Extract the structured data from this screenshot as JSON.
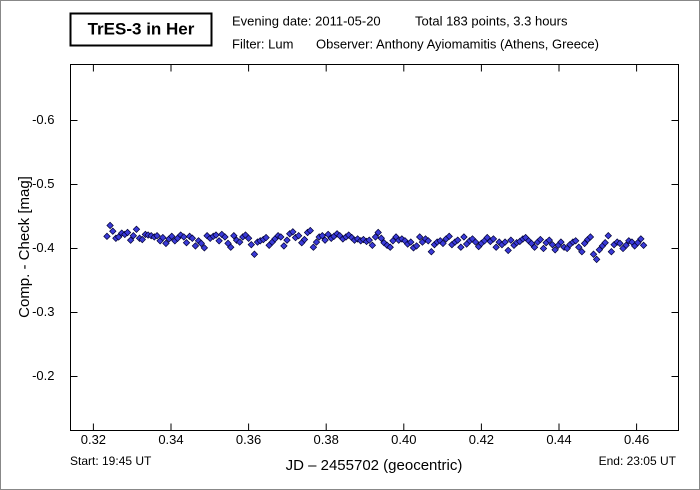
{
  "chart_data": {
    "type": "scatter",
    "title": "TrES-3 in Her",
    "subtitle_lines": [
      "Evening date: 2011-05-20",
      "Total 183 points, 3.3 hours",
      "Filter: Lum",
      "Observer: Anthony Ayiomamitis (Athens, Greece)"
    ],
    "x_label": "JD – 2455702  (geocentric)",
    "y_label": "Comp. - Check [mag]",
    "start_label": "Start: 19:45 UT",
    "end_label": "End: 23:05 UT",
    "xlim": [
      0.3141,
      0.4708
    ],
    "ylim": [
      -0.1156,
      -0.6875
    ],
    "xticks": [
      0.32,
      0.34,
      0.36,
      0.38,
      {
        "value": 0.4,
        "label": "0.40"
      },
      0.42,
      0.44,
      0.46
    ],
    "yticks": [
      -0.6,
      -0.5,
      -0.4,
      -0.3,
      -0.2
    ],
    "series": [
      {
        "color": "#3a3ad8",
        "x": [
          0.3235,
          0.3243,
          0.325,
          0.3258,
          0.3265,
          0.3273,
          0.3281,
          0.3288,
          0.3296,
          0.3303,
          0.3311,
          0.3319,
          0.3326,
          0.3334,
          0.3341,
          0.3349,
          0.3357,
          0.3364,
          0.3372,
          0.3379,
          0.3387,
          0.3395,
          0.3402,
          0.341,
          0.3417,
          0.3425,
          0.3433,
          0.344,
          0.3448,
          0.3455,
          0.3463,
          0.3471,
          0.3478,
          0.3486,
          0.3493,
          0.3501,
          0.3509,
          0.3516,
          0.3524,
          0.3531,
          0.3539,
          0.3547,
          0.3554,
          0.3562,
          0.3569,
          0.3577,
          0.3585,
          0.3592,
          0.36,
          0.3607,
          0.3615,
          0.3623,
          0.363,
          0.3638,
          0.3645,
          0.3653,
          0.3661,
          0.3668,
          0.3676,
          0.3683,
          0.3691,
          0.3699,
          0.3706,
          0.3714,
          0.3721,
          0.3729,
          0.3737,
          0.3744,
          0.3752,
          0.3759,
          0.3767,
          0.3775,
          0.3782,
          0.379,
          0.3797,
          0.3805,
          0.3813,
          0.382,
          0.3828,
          0.3835,
          0.3843,
          0.3851,
          0.3858,
          0.3866,
          0.3873,
          0.3881,
          0.3889,
          0.3896,
          0.3904,
          0.3911,
          0.3919,
          0.3927,
          0.3934,
          0.3942,
          0.3949,
          0.3957,
          0.3965,
          0.3972,
          0.398,
          0.3987,
          0.3995,
          0.4003,
          0.401,
          0.4018,
          0.4025,
          0.4033,
          0.4041,
          0.4048,
          0.4056,
          0.4063,
          0.4071,
          0.4079,
          0.4086,
          0.4094,
          0.4101,
          0.4109,
          0.4117,
          0.4124,
          0.4132,
          0.4139,
          0.4147,
          0.4155,
          0.4162,
          0.417,
          0.4177,
          0.4185,
          0.4193,
          0.42,
          0.4208,
          0.4215,
          0.4223,
          0.4231,
          0.4238,
          0.4246,
          0.4253,
          0.4261,
          0.4269,
          0.4276,
          0.4284,
          0.4291,
          0.4299,
          0.4307,
          0.4314,
          0.4322,
          0.4329,
          0.4337,
          0.4345,
          0.4352,
          0.436,
          0.4367,
          0.4375,
          0.4383,
          0.439,
          0.4398,
          0.4405,
          0.4413,
          0.4421,
          0.4428,
          0.4436,
          0.4443,
          0.4451,
          0.4459,
          0.4466,
          0.4474,
          0.4481,
          0.4489,
          0.4497,
          0.4504,
          0.4512,
          0.4519,
          0.4527,
          0.4535,
          0.4542,
          0.455,
          0.4557,
          0.4565,
          0.4573,
          0.458,
          0.4588,
          0.4595,
          0.4603,
          0.4611,
          0.4618
        ],
        "values": [
          -0.419,
          -0.436,
          -0.427,
          -0.416,
          -0.418,
          -0.424,
          -0.422,
          -0.425,
          -0.413,
          -0.42,
          -0.43,
          -0.416,
          -0.414,
          -0.422,
          -0.421,
          -0.42,
          -0.418,
          -0.42,
          -0.412,
          -0.417,
          -0.408,
          -0.415,
          -0.419,
          -0.412,
          -0.416,
          -0.421,
          -0.418,
          -0.409,
          -0.419,
          -0.416,
          -0.404,
          -0.412,
          -0.408,
          -0.401,
          -0.42,
          -0.416,
          -0.419,
          -0.421,
          -0.412,
          -0.422,
          -0.418,
          -0.408,
          -0.402,
          -0.42,
          -0.413,
          -0.41,
          -0.418,
          -0.421,
          -0.416,
          -0.406,
          -0.391,
          -0.41,
          -0.412,
          -0.414,
          -0.417,
          -0.405,
          -0.41,
          -0.415,
          -0.42,
          -0.418,
          -0.404,
          -0.413,
          -0.423,
          -0.426,
          -0.417,
          -0.42,
          -0.409,
          -0.414,
          -0.425,
          -0.428,
          -0.402,
          -0.41,
          -0.418,
          -0.42,
          -0.413,
          -0.422,
          -0.416,
          -0.419,
          -0.423,
          -0.42,
          -0.415,
          -0.418,
          -0.421,
          -0.417,
          -0.413,
          -0.415,
          -0.412,
          -0.414,
          -0.411,
          -0.413,
          -0.405,
          -0.418,
          -0.425,
          -0.416,
          -0.409,
          -0.405,
          -0.402,
          -0.412,
          -0.418,
          -0.413,
          -0.415,
          -0.412,
          -0.407,
          -0.41,
          -0.401,
          -0.404,
          -0.418,
          -0.41,
          -0.415,
          -0.412,
          -0.395,
          -0.406,
          -0.41,
          -0.412,
          -0.408,
          -0.415,
          -0.419,
          -0.406,
          -0.41,
          -0.413,
          -0.402,
          -0.418,
          -0.407,
          -0.412,
          -0.415,
          -0.41,
          -0.403,
          -0.408,
          -0.412,
          -0.417,
          -0.411,
          -0.415,
          -0.402,
          -0.41,
          -0.406,
          -0.41,
          -0.397,
          -0.413,
          -0.405,
          -0.409,
          -0.411,
          -0.415,
          -0.417,
          -0.412,
          -0.408,
          -0.402,
          -0.41,
          -0.414,
          -0.4,
          -0.409,
          -0.413,
          -0.406,
          -0.398,
          -0.405,
          -0.41,
          -0.402,
          -0.4,
          -0.406,
          -0.41,
          -0.412,
          -0.402,
          -0.395,
          -0.408,
          -0.414,
          -0.418,
          -0.391,
          -0.383,
          -0.398,
          -0.404,
          -0.409,
          -0.42,
          -0.395,
          -0.406,
          -0.41,
          -0.408,
          -0.4,
          -0.405,
          -0.412,
          -0.41,
          -0.404,
          -0.409,
          -0.415,
          -0.405
        ]
      }
    ]
  }
}
